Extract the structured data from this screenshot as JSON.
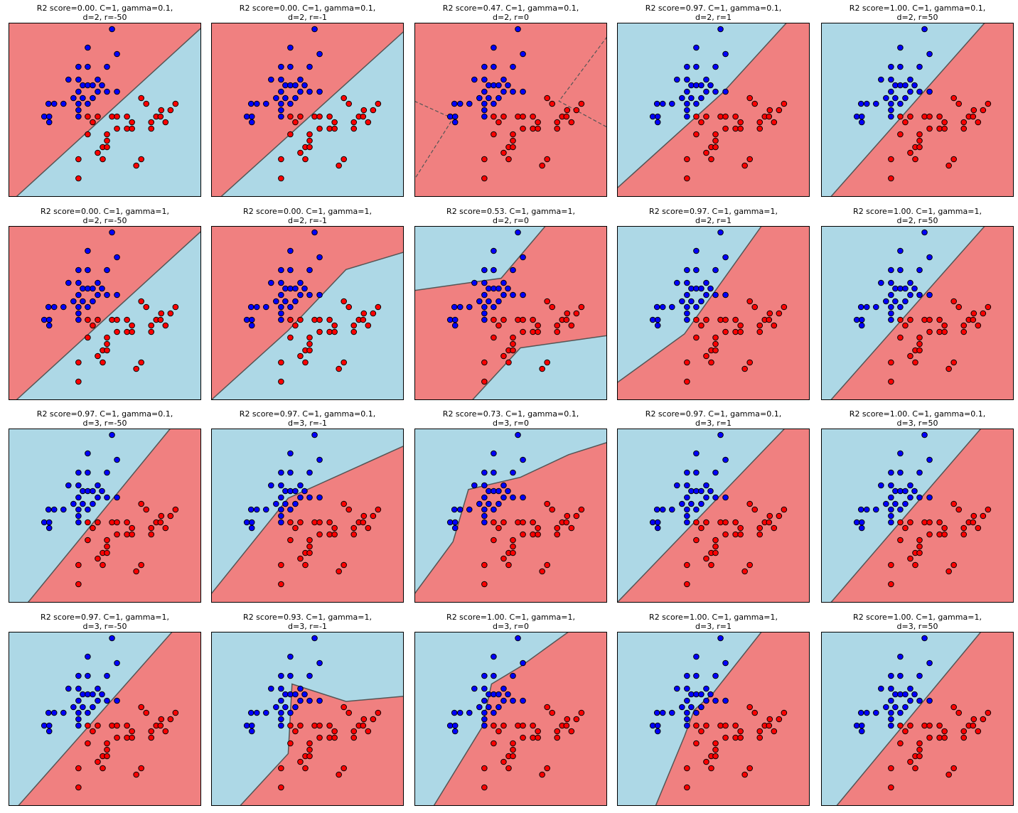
{
  "points": {
    "xlim": [
      0,
      270
    ],
    "ylim": [
      0,
      245
    ],
    "series": [
      {
        "color": "#0000ff",
        "x": [
          111,
          145,
          152,
          98,
          111,
          138,
          84,
          98,
          125,
          104,
          111,
          118,
          131,
          98,
          125,
          138,
          152,
          91,
          104,
          118,
          98,
          111,
          56,
          64,
          77,
          98,
          50,
          57,
          98,
          57
        ],
        "values": [
          210,
          236,
          201,
          183,
          183,
          183,
          165,
          165,
          165,
          157,
          157,
          157,
          157,
          148,
          148,
          148,
          148,
          139,
          139,
          139,
          131,
          131,
          131,
          131,
          131,
          122,
          113,
          113,
          113,
          105
        ]
      },
      {
        "color": "#ff0000",
        "x": [
          186,
          193,
          234,
          227,
          214,
          207,
          213,
          200,
          220,
          111,
          125,
          145,
          152,
          166,
          173,
          118,
          166,
          173,
          200,
          152,
          111,
          138,
          138,
          132,
          138,
          125,
          132,
          186,
          179,
          98,
          98
        ],
        "values": [
          139,
          131,
          131,
          122,
          122,
          113,
          113,
          105,
          105,
          113,
          113,
          113,
          113,
          113,
          105,
          105,
          96,
          96,
          96,
          96,
          88,
          88,
          79,
          70,
          70,
          62,
          53,
          53,
          44,
          53,
          26
        ]
      }
    ]
  },
  "chart_data": [
    {
      "type": "scatter",
      "title": "R2 score=0.00. C=1, gamma=0.1,\nd=2, r=-50"
    },
    {
      "type": "scatter",
      "title": "R2 score=0.00. C=1, gamma=0.1,\nd=2, r=-1"
    },
    {
      "type": "scatter",
      "title": "R2 score=0.47. C=1, gamma=0.1,\nd=2, r=0"
    },
    {
      "type": "scatter",
      "title": "R2 score=0.97. C=1, gamma=0.1,\nd=2, r=1"
    },
    {
      "type": "scatter",
      "title": "R2 score=1.00. C=1, gamma=0.1,\nd=2, r=50"
    },
    {
      "type": "scatter",
      "title": "R2 score=0.00. C=1, gamma=1,\nd=2, r=-50"
    },
    {
      "type": "scatter",
      "title": "R2 score=0.00. C=1, gamma=1,\nd=2, r=-1"
    },
    {
      "type": "scatter",
      "title": "R2 score=0.53. C=1, gamma=1,\nd=2, r=0"
    },
    {
      "type": "scatter",
      "title": "R2 score=0.97. C=1, gamma=1,\nd=2, r=1"
    },
    {
      "type": "scatter",
      "title": "R2 score=1.00. C=1, gamma=1,\nd=2, r=50"
    },
    {
      "type": "scatter",
      "title": "R2 score=0.97. C=1, gamma=0.1,\nd=3, r=-50"
    },
    {
      "type": "scatter",
      "title": "R2 score=0.97. C=1, gamma=0.1,\nd=3, r=-1"
    },
    {
      "type": "scatter",
      "title": "R2 score=0.73. C=1, gamma=0.1,\nd=3, r=0"
    },
    {
      "type": "scatter",
      "title": "R2 score=0.97. C=1, gamma=0.1,\nd=3, r=1"
    },
    {
      "type": "scatter",
      "title": "R2 score=1.00. C=1, gamma=0.1,\nd=3, r=50"
    },
    {
      "type": "scatter",
      "title": "R2 score=0.97. C=1, gamma=1,\nd=3, r=-50"
    },
    {
      "type": "scatter",
      "title": "R2 score=0.93. C=1, gamma=1,\nd=3, r=-1"
    },
    {
      "type": "scatter",
      "title": "R2 score=1.00. C=1, gamma=1,\nd=3, r=0"
    },
    {
      "type": "scatter",
      "title": "R2 score=1.00. C=1, gamma=1,\nd=3, r=1"
    },
    {
      "type": "scatter",
      "title": "R2 score=1.00. C=1, gamma=1,\nd=3, r=50"
    }
  ]
}
